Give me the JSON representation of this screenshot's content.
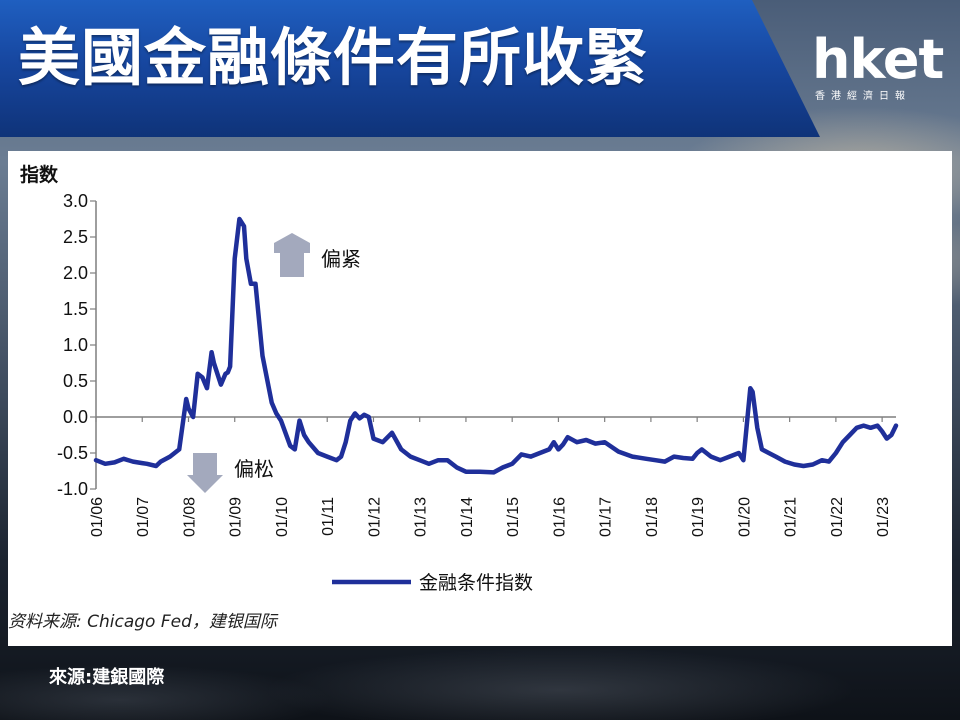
{
  "banner": {
    "title": "美國金融條件有所收緊"
  },
  "logo": {
    "name": "hket",
    "subtitle": "香港經濟日報"
  },
  "footer": {
    "source": "來源:建銀國際"
  },
  "colors": {
    "banner": "#1747a0",
    "series_line": "#1f2f9a",
    "arrow": "#a3a9bd",
    "axis": "#7f7f7f"
  },
  "chart_data": {
    "type": "line",
    "ylabel": "指数",
    "xlabel": "",
    "ylim": [
      -1.0,
      3.0
    ],
    "yticks": [
      3.0,
      2.5,
      2.0,
      1.5,
      1.0,
      0.5,
      0.0,
      -0.5,
      -1.0
    ],
    "ytick_labels": [
      "3.0",
      "2.5",
      "2.0",
      "1.5",
      "1.0",
      "0.5",
      "0.0",
      "-0.5",
      "-1.0"
    ],
    "xticks": [
      "01/06",
      "01/07",
      "01/08",
      "01/09",
      "01/10",
      "01/11",
      "01/12",
      "01/13",
      "01/14",
      "01/15",
      "01/16",
      "01/17",
      "01/18",
      "01/19",
      "01/20",
      "01/21",
      "01/22",
      "01/23"
    ],
    "xlim": [
      2006.0,
      2023.3
    ],
    "grid": false,
    "legend_position": "bottom-center",
    "annotations": [
      {
        "text": "偏紧",
        "arrow": "up"
      },
      {
        "text": "偏松",
        "arrow": "down"
      }
    ],
    "source_note": "资料来源:   Chicago Fed，建银国际",
    "series": [
      {
        "name": "金融条件指数",
        "x": [
          2006.0,
          2006.2,
          2006.4,
          2006.6,
          2006.8,
          2007.0,
          2007.1,
          2007.3,
          2007.4,
          2007.6,
          2007.8,
          2007.95,
          2008.0,
          2008.1,
          2008.2,
          2008.3,
          2008.4,
          2008.5,
          2008.55,
          2008.7,
          2008.8,
          2008.85,
          2008.9,
          2009.0,
          2009.1,
          2009.2,
          2009.25,
          2009.35,
          2009.45,
          2009.6,
          2009.8,
          2009.9,
          2010.0,
          2010.2,
          2010.3,
          2010.4,
          2010.5,
          2010.6,
          2010.8,
          2011.0,
          2011.2,
          2011.3,
          2011.4,
          2011.5,
          2011.6,
          2011.7,
          2011.8,
          2011.9,
          2012.0,
          2012.2,
          2012.4,
          2012.6,
          2012.8,
          2013.0,
          2013.2,
          2013.4,
          2013.6,
          2013.8,
          2014.0,
          2014.3,
          2014.6,
          2014.8,
          2015.0,
          2015.2,
          2015.4,
          2015.6,
          2015.8,
          2015.9,
          2016.0,
          2016.1,
          2016.2,
          2016.4,
          2016.6,
          2016.8,
          2017.0,
          2017.3,
          2017.6,
          2017.9,
          2018.1,
          2018.3,
          2018.5,
          2018.7,
          2018.9,
          2019.0,
          2019.1,
          2019.3,
          2019.5,
          2019.7,
          2019.9,
          2020.0,
          2020.15,
          2020.2,
          2020.3,
          2020.4,
          2020.55,
          2020.7,
          2020.9,
          2021.1,
          2021.3,
          2021.5,
          2021.7,
          2021.85,
          2022.0,
          2022.15,
          2022.3,
          2022.45,
          2022.6,
          2022.75,
          2022.9,
          2023.0,
          2023.1,
          2023.2,
          2023.3
        ],
        "values": [
          -0.6,
          -0.65,
          -0.63,
          -0.58,
          -0.62,
          -0.64,
          -0.65,
          -0.68,
          -0.62,
          -0.55,
          -0.45,
          0.25,
          0.12,
          0.0,
          0.6,
          0.55,
          0.4,
          0.9,
          0.75,
          0.45,
          0.6,
          0.62,
          0.7,
          2.2,
          2.75,
          2.65,
          2.2,
          1.85,
          1.85,
          0.85,
          0.2,
          0.05,
          -0.05,
          -0.4,
          -0.45,
          -0.05,
          -0.25,
          -0.35,
          -0.5,
          -0.55,
          -0.6,
          -0.55,
          -0.35,
          -0.05,
          0.05,
          -0.02,
          0.03,
          0.0,
          -0.3,
          -0.35,
          -0.22,
          -0.45,
          -0.55,
          -0.6,
          -0.65,
          -0.6,
          -0.6,
          -0.7,
          -0.76,
          -0.76,
          -0.77,
          -0.7,
          -0.65,
          -0.52,
          -0.55,
          -0.5,
          -0.45,
          -0.35,
          -0.45,
          -0.38,
          -0.28,
          -0.35,
          -0.32,
          -0.37,
          -0.35,
          -0.48,
          -0.55,
          -0.58,
          -0.6,
          -0.62,
          -0.55,
          -0.57,
          -0.58,
          -0.5,
          -0.45,
          -0.55,
          -0.6,
          -0.55,
          -0.5,
          -0.6,
          0.4,
          0.35,
          -0.15,
          -0.45,
          -0.5,
          -0.55,
          -0.62,
          -0.66,
          -0.68,
          -0.66,
          -0.6,
          -0.62,
          -0.5,
          -0.35,
          -0.25,
          -0.15,
          -0.12,
          -0.15,
          -0.12,
          -0.2,
          -0.3,
          -0.25,
          -0.12
        ]
      }
    ]
  }
}
